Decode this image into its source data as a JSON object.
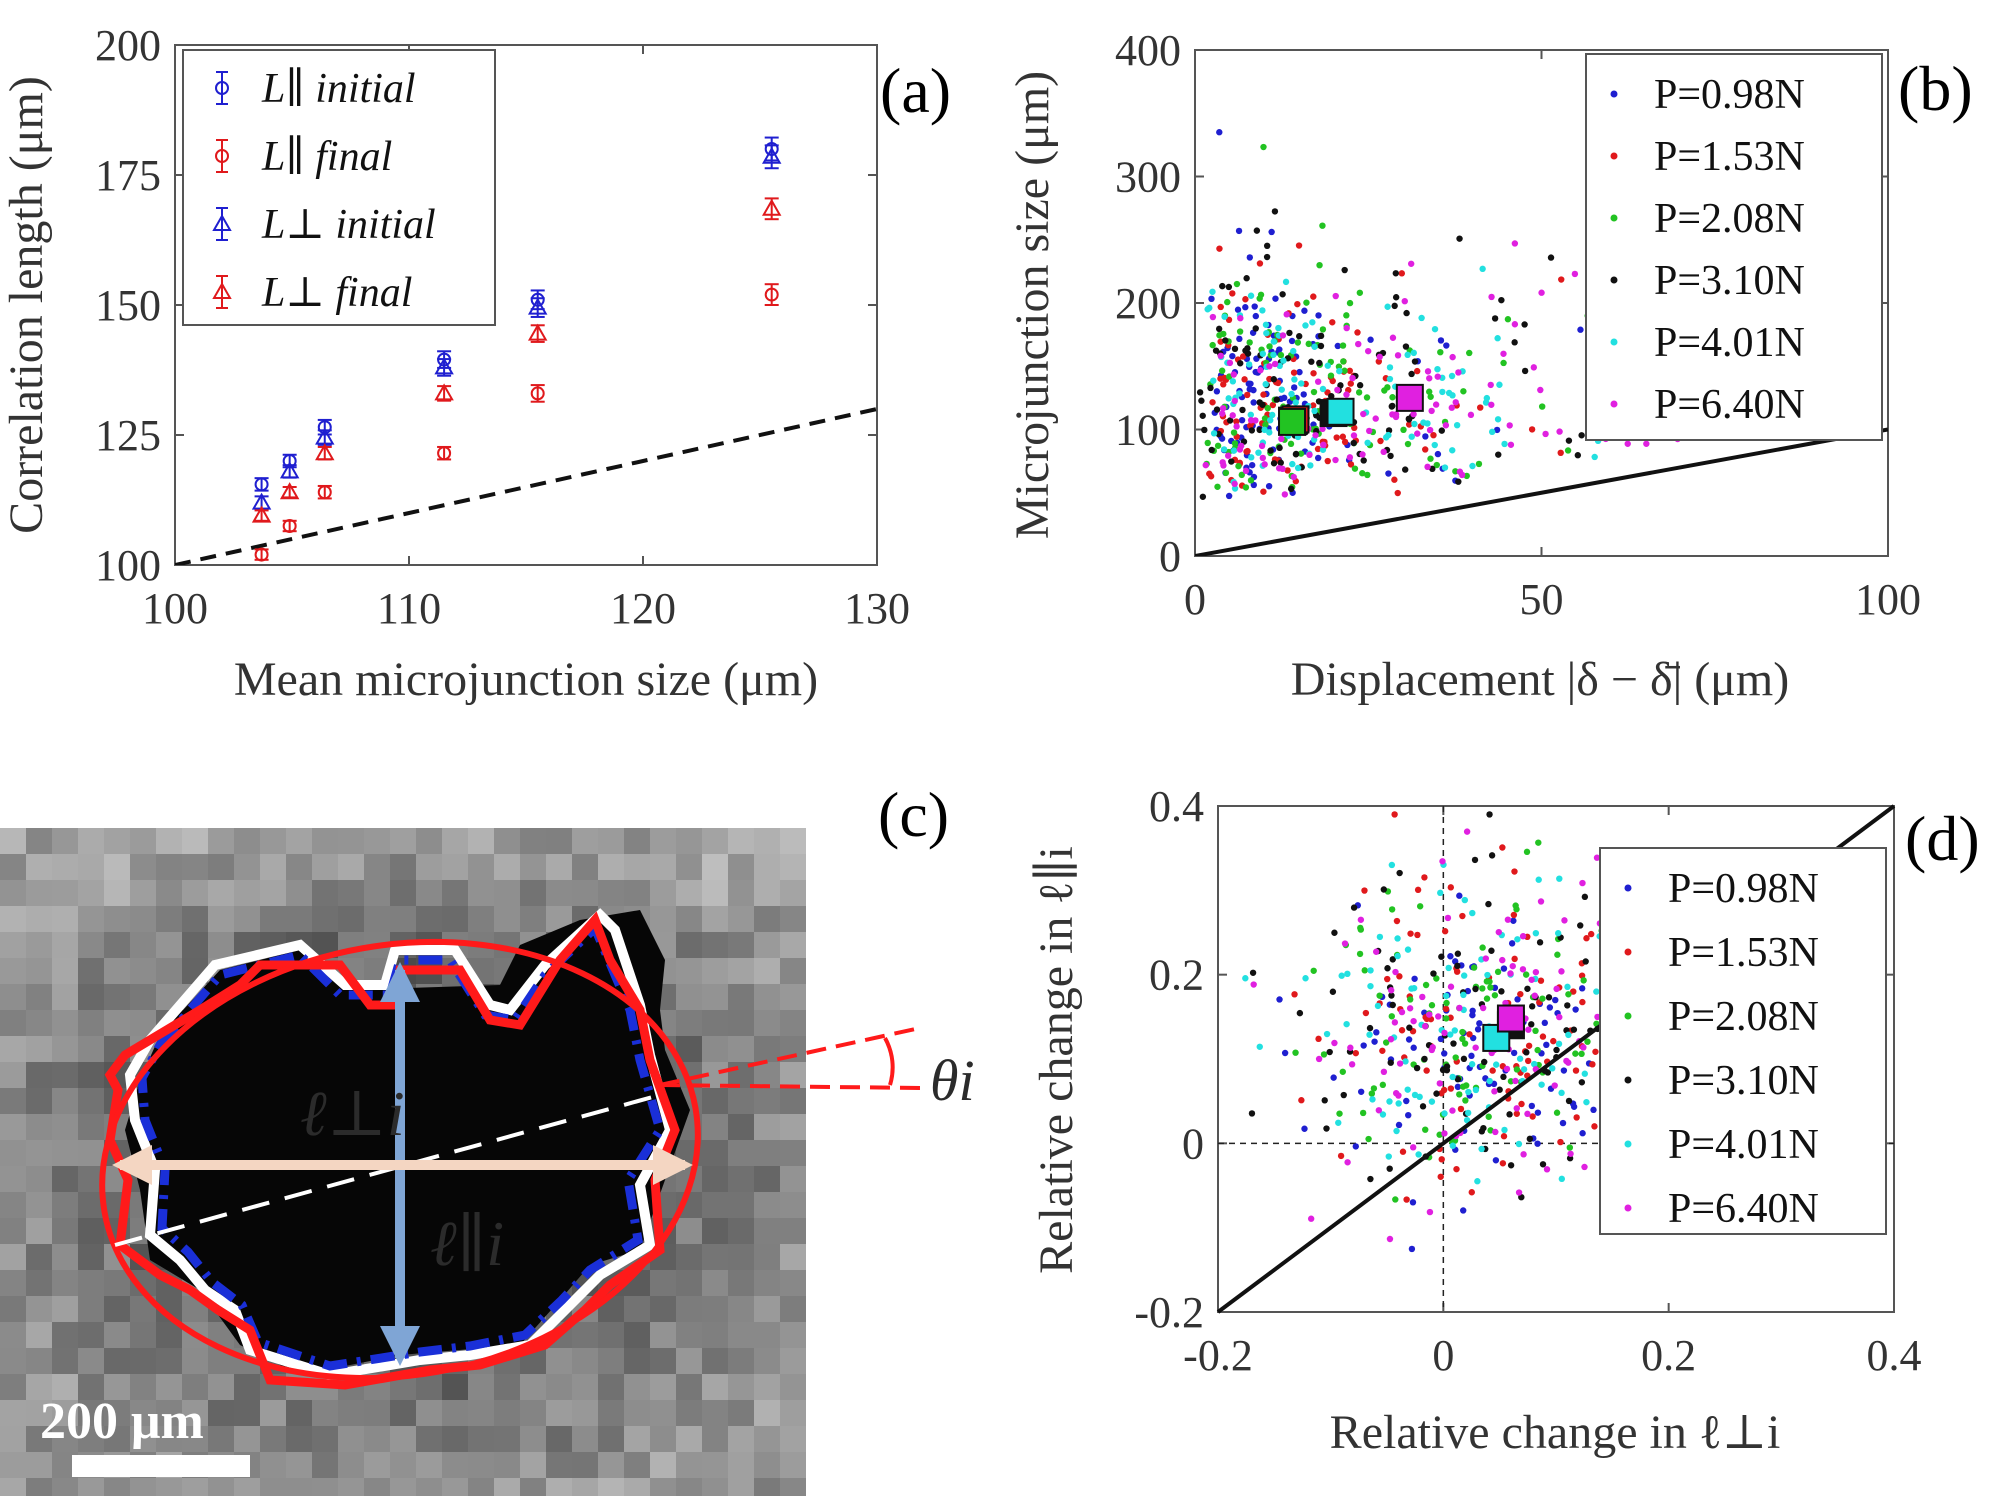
{
  "chart_data": [
    {
      "panel": "(a)",
      "type": "scatter",
      "xlabel": "Mean microjunction size (μm)",
      "ylabel": "Correlation length (μm)",
      "xlim": [
        100,
        130
      ],
      "ylim": [
        100,
        200
      ],
      "xticks": [
        "100",
        "110",
        "120",
        "130"
      ],
      "yticks": [
        "100",
        "125",
        "150",
        "175",
        "200"
      ],
      "legend_position": "top-left",
      "series": [
        {
          "name": "L∥ initial",
          "marker": "circle",
          "color": "#1f1fd0",
          "x": [
            103.7,
            104.9,
            106.4,
            111.5,
            115.5,
            125.5
          ],
          "y": [
            115.5,
            120.0,
            126.5,
            139.5,
            151.0,
            180.0
          ],
          "err": [
            1.2,
            1.2,
            1.4,
            1.6,
            1.8,
            2.2
          ]
        },
        {
          "name": "L∥ final",
          "marker": "circle",
          "color": "#e0191c",
          "x": [
            103.7,
            104.9,
            106.4,
            111.5,
            115.5,
            125.5
          ],
          "y": [
            102.0,
            107.5,
            114.0,
            121.5,
            133.0,
            152.0
          ],
          "err": [
            1.0,
            1.0,
            1.2,
            1.2,
            1.6,
            2.0
          ]
        },
        {
          "name": "L⊥ initial",
          "marker": "triangle",
          "color": "#1f1fd0",
          "x": [
            103.7,
            104.9,
            106.4,
            111.5,
            115.5,
            125.5
          ],
          "y": [
            112.0,
            118.0,
            124.5,
            138.0,
            149.5,
            178.5
          ],
          "err": [
            1.2,
            1.2,
            1.4,
            1.6,
            1.8,
            2.2
          ]
        },
        {
          "name": "L⊥ final",
          "marker": "triangle",
          "color": "#e0191c",
          "x": [
            103.7,
            104.9,
            106.4,
            111.5,
            115.5,
            125.5
          ],
          "y": [
            109.5,
            114.0,
            121.5,
            133.0,
            144.5,
            168.5
          ],
          "err": [
            1.0,
            1.0,
            1.2,
            1.4,
            1.6,
            2.0
          ]
        }
      ],
      "reference_line": {
        "style": "dashed",
        "x": [
          100,
          130
        ],
        "y": [
          100,
          130
        ]
      }
    },
    {
      "panel": "(b)",
      "type": "scatter",
      "xlabel": "Displacement |δ − δ̄| (μm)",
      "ylabel": "Microjunction size (μm)",
      "xlim": [
        0,
        100
      ],
      "ylim": [
        0,
        400
      ],
      "xticks": [
        "0",
        "50",
        "100"
      ],
      "yticks": [
        "0",
        "100",
        "200",
        "300",
        "400"
      ],
      "legend_position": "top-right",
      "series": [
        {
          "name": "P=0.98N",
          "color": "#1f1fd0"
        },
        {
          "name": "P=1.53N",
          "color": "#e0191c"
        },
        {
          "name": "P=2.08N",
          "color": "#22c322"
        },
        {
          "name": "P=3.10N",
          "color": "#111111"
        },
        {
          "name": "P=4.01N",
          "color": "#22e0e0"
        },
        {
          "name": "P=6.40N",
          "color": "#e020e0"
        }
      ],
      "mean_markers": [
        {
          "series": "P=0.98N",
          "x": 14,
          "y": 107
        },
        {
          "series": "P=1.53N",
          "x": 14.5,
          "y": 108
        },
        {
          "series": "P=2.08N",
          "x": 14,
          "y": 106
        },
        {
          "series": "P=3.10N",
          "x": 20,
          "y": 113
        },
        {
          "series": "P=4.01N",
          "x": 21,
          "y": 114
        },
        {
          "series": "P=6.40N",
          "x": 31,
          "y": 125
        }
      ],
      "reference_line": {
        "style": "solid",
        "x": [
          0,
          100
        ],
        "y": [
          0,
          100
        ]
      }
    },
    {
      "panel": "(d)",
      "type": "scatter",
      "xlabel": "Relative change in ℓ⊥i",
      "ylabel": "Relative change in ℓ∥i",
      "xlim": [
        -0.2,
        0.4
      ],
      "ylim": [
        -0.2,
        0.4
      ],
      "xticks": [
        "-0.2",
        "0",
        "0.2",
        "0.4"
      ],
      "yticks": [
        "-0.2",
        "0",
        "0.2",
        "0.4"
      ],
      "legend_position": "right",
      "series": [
        {
          "name": "P=0.98N",
          "color": "#1f1fd0"
        },
        {
          "name": "P=1.53N",
          "color": "#e0191c"
        },
        {
          "name": "P=2.08N",
          "color": "#22c322"
        },
        {
          "name": "P=3.10N",
          "color": "#111111"
        },
        {
          "name": "P=4.01N",
          "color": "#22e0e0"
        },
        {
          "name": "P=6.40N",
          "color": "#e020e0"
        }
      ],
      "mean_markers": [
        {
          "series": "P=3.10N",
          "x": 0.06,
          "y": 0.14
        },
        {
          "series": "P=4.01N",
          "x": 0.047,
          "y": 0.125
        },
        {
          "series": "P=6.40N",
          "x": 0.06,
          "y": 0.148
        }
      ],
      "reference_line": {
        "style": "solid",
        "x": [
          -0.2,
          0.4
        ],
        "y": [
          -0.2,
          0.4
        ]
      }
    }
  ],
  "panel_c": {
    "letter": "(c)",
    "scale_bar_label": "200 μm",
    "perp_label": "ℓ⊥i",
    "par_label": "ℓ∥i",
    "angle_label": "θi"
  }
}
